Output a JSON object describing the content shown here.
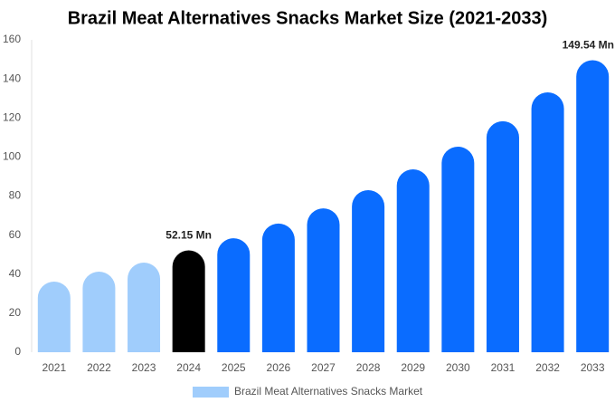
{
  "chart_data": {
    "type": "bar",
    "title": "Brazil Meat Alternatives Snacks Market Size (2021-2033)",
    "categories": [
      "2021",
      "2022",
      "2023",
      "2024",
      "2025",
      "2026",
      "2027",
      "2028",
      "2029",
      "2030",
      "2031",
      "2032",
      "2033"
    ],
    "series": [
      {
        "name": "Brazil Meat Alternatives Snacks Market",
        "color": "#a0cdfc",
        "values": [
          36.2,
          41.3,
          45.9,
          52.15,
          58.4,
          65.9,
          73.7,
          83.0,
          93.7,
          105.3,
          118.3,
          133.1,
          149.54
        ],
        "colors": [
          "#a0cdfc",
          "#a0cdfc",
          "#a0cdfc",
          "#000000",
          "#0a6cff",
          "#0a6cff",
          "#0a6cff",
          "#0a6cff",
          "#0a6cff",
          "#0a6cff",
          "#0a6cff",
          "#0a6cff",
          "#0a6cff"
        ],
        "value_labels": [
          null,
          null,
          null,
          "52.15 Mn",
          null,
          null,
          null,
          null,
          null,
          null,
          null,
          null,
          "149.54 Mn"
        ]
      }
    ],
    "ylim": [
      0,
      160
    ],
    "yticks": [
      0,
      20,
      40,
      60,
      80,
      100,
      120,
      140,
      160
    ],
    "grid": false
  }
}
